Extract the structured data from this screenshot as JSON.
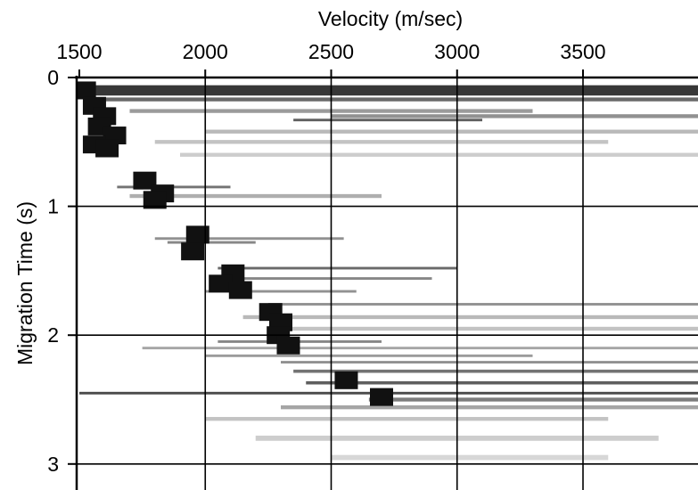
{
  "chart_data": {
    "type": "heatmap",
    "title": "",
    "xlabel": "Velocity (m/sec)",
    "ylabel": "Migration Time (s)",
    "xlim": [
      1500,
      4000
    ],
    "ylim": [
      0,
      3.2
    ],
    "y_inverted": true,
    "x_ticks": [
      1500,
      2000,
      2500,
      3000,
      3500
    ],
    "y_ticks": [
      0,
      1,
      2,
      3
    ],
    "grid": true,
    "x_axis_position": "top",
    "colormap": "grayscale",
    "picks": [
      {
        "t": 0.1,
        "v": 1520
      },
      {
        "t": 0.22,
        "v": 1560
      },
      {
        "t": 0.3,
        "v": 1600
      },
      {
        "t": 0.38,
        "v": 1580
      },
      {
        "t": 0.45,
        "v": 1640
      },
      {
        "t": 0.52,
        "v": 1560
      },
      {
        "t": 0.55,
        "v": 1610
      },
      {
        "t": 0.8,
        "v": 1760
      },
      {
        "t": 0.9,
        "v": 1830
      },
      {
        "t": 0.95,
        "v": 1800
      },
      {
        "t": 1.22,
        "v": 1970
      },
      {
        "t": 1.35,
        "v": 1950
      },
      {
        "t": 1.52,
        "v": 2110
      },
      {
        "t": 1.6,
        "v": 2060
      },
      {
        "t": 1.65,
        "v": 2140
      },
      {
        "t": 1.82,
        "v": 2260
      },
      {
        "t": 1.9,
        "v": 2300
      },
      {
        "t": 2.0,
        "v": 2290
      },
      {
        "t": 2.08,
        "v": 2330
      },
      {
        "t": 2.35,
        "v": 2560
      },
      {
        "t": 2.48,
        "v": 2700
      }
    ],
    "streaks": [
      {
        "t": 0.1,
        "v0": 1500,
        "v1": 4000,
        "intensity": 1.0,
        "thick": 0.08
      },
      {
        "t": 0.17,
        "v0": 1540,
        "v1": 4000,
        "intensity": 0.75,
        "thick": 0.03
      },
      {
        "t": 0.26,
        "v0": 1700,
        "v1": 3300,
        "intensity": 0.5,
        "thick": 0.03
      },
      {
        "t": 0.3,
        "v0": 2500,
        "v1": 4000,
        "intensity": 0.55,
        "thick": 0.03
      },
      {
        "t": 0.33,
        "v0": 2350,
        "v1": 3100,
        "intensity": 0.8,
        "thick": 0.02
      },
      {
        "t": 0.42,
        "v0": 2000,
        "v1": 4000,
        "intensity": 0.35,
        "thick": 0.03
      },
      {
        "t": 0.5,
        "v0": 1800,
        "v1": 3600,
        "intensity": 0.3,
        "thick": 0.03
      },
      {
        "t": 0.6,
        "v0": 1900,
        "v1": 4000,
        "intensity": 0.25,
        "thick": 0.03
      },
      {
        "t": 0.85,
        "v0": 1650,
        "v1": 2100,
        "intensity": 0.7,
        "thick": 0.02
      },
      {
        "t": 0.92,
        "v0": 1700,
        "v1": 2700,
        "intensity": 0.4,
        "thick": 0.03
      },
      {
        "t": 1.25,
        "v0": 1800,
        "v1": 2550,
        "intensity": 0.55,
        "thick": 0.02
      },
      {
        "t": 1.28,
        "v0": 1850,
        "v1": 2200,
        "intensity": 0.6,
        "thick": 0.02
      },
      {
        "t": 1.48,
        "v0": 2050,
        "v1": 3000,
        "intensity": 0.75,
        "thick": 0.02
      },
      {
        "t": 1.56,
        "v0": 2100,
        "v1": 2900,
        "intensity": 0.6,
        "thick": 0.02
      },
      {
        "t": 1.66,
        "v0": 2000,
        "v1": 2600,
        "intensity": 0.55,
        "thick": 0.02
      },
      {
        "t": 1.76,
        "v0": 2250,
        "v1": 4000,
        "intensity": 0.55,
        "thick": 0.02
      },
      {
        "t": 1.86,
        "v0": 2150,
        "v1": 4000,
        "intensity": 0.35,
        "thick": 0.03
      },
      {
        "t": 1.95,
        "v0": 2250,
        "v1": 4000,
        "intensity": 0.3,
        "thick": 0.03
      },
      {
        "t": 2.05,
        "v0": 2050,
        "v1": 2700,
        "intensity": 0.6,
        "thick": 0.02
      },
      {
        "t": 2.1,
        "v0": 1750,
        "v1": 4000,
        "intensity": 0.45,
        "thick": 0.02
      },
      {
        "t": 2.16,
        "v0": 2000,
        "v1": 3300,
        "intensity": 0.5,
        "thick": 0.02
      },
      {
        "t": 2.21,
        "v0": 2300,
        "v1": 4000,
        "intensity": 0.55,
        "thick": 0.02
      },
      {
        "t": 2.28,
        "v0": 2350,
        "v1": 4000,
        "intensity": 0.7,
        "thick": 0.025
      },
      {
        "t": 2.37,
        "v0": 2400,
        "v1": 4000,
        "intensity": 0.8,
        "thick": 0.025
      },
      {
        "t": 2.45,
        "v0": 1500,
        "v1": 4000,
        "intensity": 0.9,
        "thick": 0.02
      },
      {
        "t": 2.5,
        "v0": 2650,
        "v1": 4000,
        "intensity": 0.65,
        "thick": 0.03
      },
      {
        "t": 2.56,
        "v0": 2300,
        "v1": 4000,
        "intensity": 0.45,
        "thick": 0.03
      },
      {
        "t": 2.65,
        "v0": 2000,
        "v1": 3600,
        "intensity": 0.3,
        "thick": 0.03
      },
      {
        "t": 2.8,
        "v0": 2200,
        "v1": 3800,
        "intensity": 0.25,
        "thick": 0.04
      },
      {
        "t": 2.95,
        "v0": 2500,
        "v1": 3600,
        "intensity": 0.2,
        "thick": 0.04
      }
    ]
  }
}
